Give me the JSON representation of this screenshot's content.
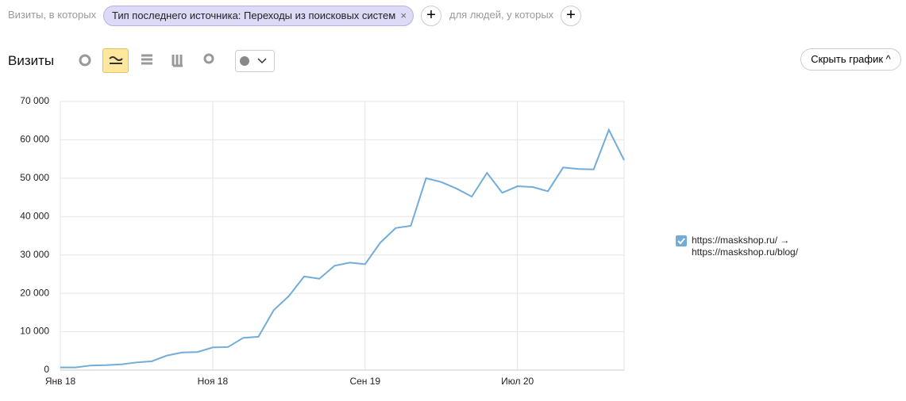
{
  "filter_bar": {
    "label": "Визиты, в которых",
    "pill": "Тип последнего источника: Переходы из поисковых систем",
    "suffix": "для людей, у которых"
  },
  "toolbar": {
    "title": "Визиты",
    "hide_button": "Скрыть график"
  },
  "chart_data": {
    "type": "line",
    "categories": [
      "Янв 18",
      null,
      null,
      null,
      null,
      null,
      null,
      null,
      null,
      null,
      "Ноя 18",
      null,
      null,
      null,
      null,
      null,
      null,
      null,
      null,
      null,
      "Сен 19",
      null,
      null,
      null,
      null,
      null,
      null,
      null,
      null,
      null,
      "Июл 20",
      null,
      null,
      null,
      null,
      null,
      null,
      null
    ],
    "series": [
      {
        "name": "https://maskshop.ru/ → https://maskshop.ru/blog/",
        "color": "#72acd9",
        "values": [
          700,
          700,
          1200,
          1300,
          1500,
          2000,
          2300,
          3800,
          4600,
          4700,
          5900,
          6000,
          8400,
          8700,
          15600,
          19300,
          24400,
          23800,
          27200,
          28000,
          27600,
          33200,
          37000,
          37600,
          50000,
          49000,
          47300,
          45200,
          51400,
          46200,
          47900,
          47700,
          46600,
          52800,
          52400,
          52300,
          62600,
          54700
        ]
      }
    ],
    "ylim": [
      0,
      70000
    ],
    "yticks": [
      0,
      {
        "value": 10000,
        "label": "10 000"
      },
      {
        "value": 20000,
        "label": "20 000"
      },
      {
        "value": 30000,
        "label": "30 000"
      },
      {
        "value": 40000,
        "label": "40 000"
      },
      {
        "value": 50000,
        "label": "50 000"
      },
      {
        "value": 60000,
        "label": "60 000"
      },
      {
        "value": 70000,
        "label": "70 000"
      }
    ],
    "grid": true,
    "legend": "right"
  }
}
